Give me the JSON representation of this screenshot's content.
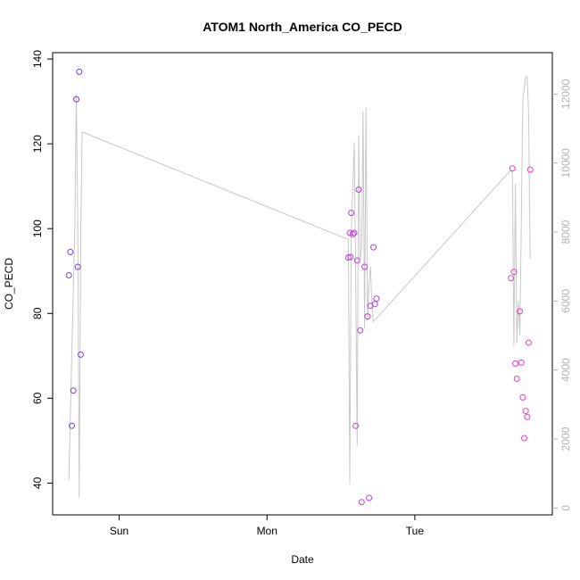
{
  "chart_data": {
    "type": "scatter",
    "title": "ATOM1 North_America CO_PECD",
    "xlabel": "Date",
    "ylabel": "CO_PECD",
    "x_ticks": [
      {
        "label": "Sun",
        "value": 1.0
      },
      {
        "label": "Mon",
        "value": 2.0
      },
      {
        "label": "Tue",
        "value": 3.0
      }
    ],
    "xlim": [
      0.55,
      3.93
    ],
    "ylim": [
      32.5,
      141.5
    ],
    "y_ticks": [
      40,
      60,
      80,
      100,
      120,
      140
    ],
    "y2lim": [
      -200,
      13200
    ],
    "y2_ticks": [
      0,
      2000,
      4000,
      6000,
      8000,
      10000,
      12000
    ],
    "points": [
      {
        "x": 0.66,
        "y": 89.0,
        "color": "#7a3cf0"
      },
      {
        "x": 0.67,
        "y": 94.5,
        "color": "#7a3cf0"
      },
      {
        "x": 0.68,
        "y": 53.5,
        "color": "#7a3cf0"
      },
      {
        "x": 0.69,
        "y": 61.8,
        "color": "#7a3cf0"
      },
      {
        "x": 0.71,
        "y": 130.5,
        "color": "#7a3cf0"
      },
      {
        "x": 0.72,
        "y": 91.0,
        "color": "#7a3cf0"
      },
      {
        "x": 0.73,
        "y": 137.0,
        "color": "#7a3cf0"
      },
      {
        "x": 0.74,
        "y": 70.3,
        "color": "#7a3cf0"
      },
      {
        "x": 2.55,
        "y": 93.2,
        "color": "#c63ce6"
      },
      {
        "x": 2.56,
        "y": 99.0,
        "color": "#c63ce6"
      },
      {
        "x": 2.565,
        "y": 93.3,
        "color": "#c63ce6"
      },
      {
        "x": 2.57,
        "y": 103.7,
        "color": "#c63ce6"
      },
      {
        "x": 2.58,
        "y": 98.7,
        "color": "#c63ce6"
      },
      {
        "x": 2.59,
        "y": 99.0,
        "color": "#c63ce6"
      },
      {
        "x": 2.6,
        "y": 53.5,
        "color": "#c63ce6"
      },
      {
        "x": 2.61,
        "y": 92.5,
        "color": "#c63ce6"
      },
      {
        "x": 2.62,
        "y": 109.2,
        "color": "#c63ce6"
      },
      {
        "x": 2.63,
        "y": 76.0,
        "color": "#c63ce6"
      },
      {
        "x": 2.64,
        "y": 35.5,
        "color": "#c63ce6"
      },
      {
        "x": 2.66,
        "y": 91.0,
        "color": "#c63ce6"
      },
      {
        "x": 2.68,
        "y": 79.3,
        "color": "#c63ce6"
      },
      {
        "x": 2.69,
        "y": 36.5,
        "color": "#c63ce6"
      },
      {
        "x": 2.7,
        "y": 81.8,
        "color": "#c63ce6"
      },
      {
        "x": 2.72,
        "y": 95.6,
        "color": "#c63ce6"
      },
      {
        "x": 2.73,
        "y": 82.2,
        "color": "#c63ce6"
      },
      {
        "x": 2.74,
        "y": 83.5,
        "color": "#c63ce6"
      },
      {
        "x": 3.65,
        "y": 88.3,
        "color": "#ee3cc0"
      },
      {
        "x": 3.66,
        "y": 114.2,
        "color": "#ee3cc0"
      },
      {
        "x": 3.67,
        "y": 89.8,
        "color": "#ee3cc0"
      },
      {
        "x": 3.68,
        "y": 68.2,
        "color": "#ee3cc0"
      },
      {
        "x": 3.69,
        "y": 64.6,
        "color": "#ee3cc0"
      },
      {
        "x": 3.71,
        "y": 80.5,
        "color": "#ee3cc0"
      },
      {
        "x": 3.72,
        "y": 68.4,
        "color": "#ee3cc0"
      },
      {
        "x": 3.73,
        "y": 60.2,
        "color": "#ee3cc0"
      },
      {
        "x": 3.74,
        "y": 50.6,
        "color": "#ee3cc0"
      },
      {
        "x": 3.75,
        "y": 57.0,
        "color": "#ee3cc0"
      },
      {
        "x": 3.76,
        "y": 55.6,
        "color": "#ee3cc0"
      },
      {
        "x": 3.77,
        "y": 73.1,
        "color": "#ee3cc0"
      },
      {
        "x": 3.78,
        "y": 113.9,
        "color": "#ee3cc0"
      }
    ],
    "secondary_line": {
      "axis": "right",
      "color": "#c8c8c8",
      "points": [
        [
          0.66,
          800
        ],
        [
          0.68,
          4500
        ],
        [
          0.7,
          8200
        ],
        [
          0.71,
          12000
        ],
        [
          0.72,
          8000
        ],
        [
          0.73,
          300
        ],
        [
          0.74,
          8000
        ],
        [
          0.75,
          10900
        ],
        [
          2.54,
          7800
        ],
        [
          2.55,
          7800
        ],
        [
          2.56,
          700
        ],
        [
          2.57,
          8000
        ],
        [
          2.59,
          10600
        ],
        [
          2.6,
          6800
        ],
        [
          2.61,
          1800
        ],
        [
          2.62,
          10800
        ],
        [
          2.63,
          7200
        ],
        [
          2.64,
          7500
        ],
        [
          2.65,
          11500
        ],
        [
          2.66,
          5200
        ],
        [
          2.67,
          11600
        ],
        [
          2.68,
          5400
        ],
        [
          2.69,
          6500
        ],
        [
          2.7,
          7000
        ],
        [
          2.71,
          5800
        ],
        [
          2.72,
          5400
        ],
        [
          3.65,
          9800
        ],
        [
          3.66,
          9700
        ],
        [
          3.67,
          4700
        ],
        [
          3.68,
          9400
        ],
        [
          3.69,
          4800
        ],
        [
          3.7,
          6000
        ],
        [
          3.71,
          5000
        ],
        [
          3.72,
          8200
        ],
        [
          3.73,
          11800
        ],
        [
          3.74,
          12200
        ],
        [
          3.75,
          12500
        ],
        [
          3.76,
          12500
        ],
        [
          3.77,
          11400
        ],
        [
          3.78,
          7200
        ]
      ]
    },
    "grid": false,
    "legend": "none"
  }
}
